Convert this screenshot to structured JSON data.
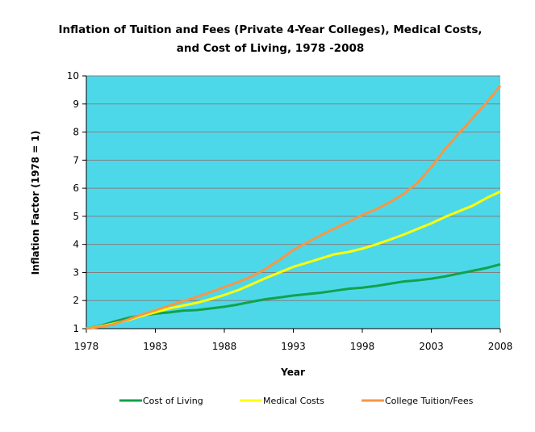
{
  "chart_data": {
    "type": "line",
    "title": "Inflation of Tuition  and Fees (Private 4-Year Colleges), Medical Costs,",
    "title_line2": "and Cost of Living, 1978 -2008",
    "xlabel": "Year",
    "ylabel": "Inflation Factor (1978 = 1)",
    "xlim": [
      1978,
      2008
    ],
    "ylim": [
      1,
      10
    ],
    "xticks": [
      "1978",
      "1983",
      "1988",
      "1993",
      "1998",
      "2003",
      "2008"
    ],
    "yticks": [
      "1",
      "2",
      "3",
      "4",
      "5",
      "6",
      "7",
      "8",
      "9",
      "10"
    ],
    "grid": "horizontal",
    "legend_position": "bottom",
    "background_color": "#4dd8ea",
    "x": [
      1978,
      1979,
      1980,
      1981,
      1982,
      1983,
      1984,
      1985,
      1986,
      1987,
      1988,
      1989,
      1990,
      1991,
      1992,
      1993,
      1994,
      1995,
      1996,
      1997,
      1998,
      1999,
      2000,
      2001,
      2002,
      2003,
      2004,
      2005,
      2006,
      2007,
      2008
    ],
    "series": [
      {
        "name": "Cost of Living",
        "color": "#12a24a",
        "values": [
          1.0,
          1.1,
          1.25,
          1.38,
          1.47,
          1.53,
          1.58,
          1.64,
          1.66,
          1.72,
          1.78,
          1.86,
          1.96,
          2.05,
          2.11,
          2.18,
          2.23,
          2.28,
          2.35,
          2.42,
          2.46,
          2.52,
          2.6,
          2.68,
          2.72,
          2.78,
          2.86,
          2.96,
          3.06,
          3.16,
          3.29
        ]
      },
      {
        "name": "Medical Costs",
        "color": "#ffff00",
        "values": [
          1.0,
          1.08,
          1.18,
          1.3,
          1.45,
          1.58,
          1.72,
          1.82,
          1.92,
          2.05,
          2.2,
          2.37,
          2.58,
          2.8,
          3.0,
          3.2,
          3.35,
          3.5,
          3.65,
          3.73,
          3.85,
          4.0,
          4.17,
          4.35,
          4.55,
          4.75,
          4.98,
          5.18,
          5.38,
          5.65,
          5.88
        ]
      },
      {
        "name": "College Tuition/Fees",
        "color": "#f79646",
        "values": [
          1.0,
          1.06,
          1.16,
          1.32,
          1.5,
          1.65,
          1.82,
          1.98,
          2.13,
          2.3,
          2.48,
          2.66,
          2.86,
          3.13,
          3.45,
          3.8,
          4.07,
          4.33,
          4.57,
          4.8,
          5.05,
          5.25,
          5.5,
          5.8,
          6.2,
          6.75,
          7.4,
          7.95,
          8.5,
          9.05,
          9.65
        ]
      }
    ]
  }
}
